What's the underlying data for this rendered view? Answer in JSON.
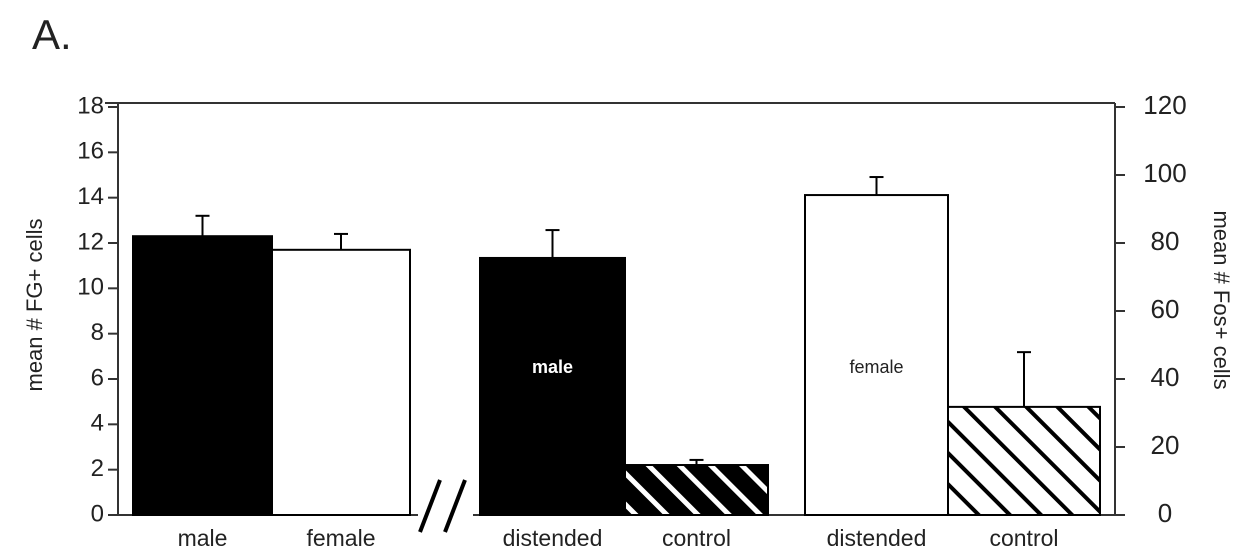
{
  "chart_data": {
    "type": "bar",
    "panel_label": "A.",
    "ylabel": "mean # FG+ cells",
    "y2label": "mean # Fos+ cells",
    "ylim": [
      0,
      18
    ],
    "yticks": [
      0,
      2,
      4,
      6,
      8,
      10,
      12,
      14,
      16,
      18
    ],
    "y2lim": [
      0,
      120
    ],
    "y2ticks": [
      0,
      20,
      40,
      60,
      80,
      100,
      120
    ],
    "bars": [
      {
        "category": "male",
        "value": 12.3,
        "error": 0.9,
        "axis": "y",
        "color": "#000000",
        "hatch": false
      },
      {
        "category": "female",
        "value": 11.7,
        "error": 0.7,
        "axis": "y",
        "color": "#ffffff",
        "hatch": false
      },
      {
        "category": "distended",
        "value": 75.6,
        "error": 8.2,
        "axis": "y2",
        "color": "#000000",
        "hatch": false,
        "inner_label": "male"
      },
      {
        "category": "control",
        "value": 14.7,
        "error": 1.5,
        "axis": "y2",
        "color": "#000000",
        "hatch": true
      },
      {
        "category": "distended",
        "value": 94.1,
        "error": 5.3,
        "axis": "y2",
        "color": "#ffffff",
        "hatch": false,
        "inner_label": "female"
      },
      {
        "category": "control",
        "value": 31.8,
        "error": 16.1,
        "axis": "y2",
        "color": "#ffffff",
        "hatch": true
      }
    ]
  }
}
